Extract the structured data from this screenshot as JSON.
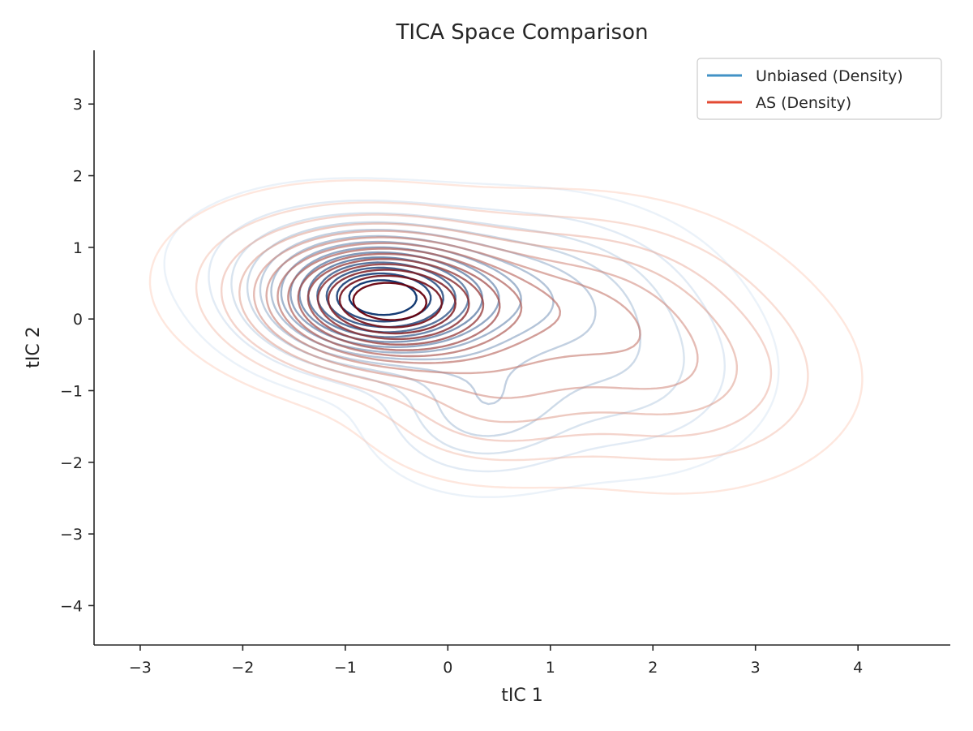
{
  "chart_data": {
    "type": "contour",
    "title": "TICA Space Comparison",
    "xlabel": "tIC 1",
    "ylabel": "tIC 2",
    "xlim": [
      -3.45,
      4.9
    ],
    "ylim": [
      -4.55,
      3.75
    ],
    "xticks": [
      -3,
      -2,
      -1,
      0,
      1,
      2,
      3,
      4
    ],
    "yticks": [
      -4,
      -3,
      -2,
      -1,
      0,
      1,
      2,
      3
    ],
    "xtick_labels": [
      "−3",
      "−2",
      "−1",
      "0",
      "1",
      "2",
      "3",
      "4"
    ],
    "ytick_labels": [
      "−4",
      "−3",
      "−2",
      "−1",
      "0",
      "1",
      "2",
      "3"
    ],
    "grid": false,
    "legend_position": "top-right",
    "series": [
      {
        "name": "Unbiased (Density)",
        "color": "#4292c6",
        "colormap": "Blues",
        "levels": 14,
        "components": [
          {
            "weight": 1.0,
            "mean": [
              -0.7,
              0.25
            ],
            "sigma": [
              0.7,
              0.55
            ]
          },
          {
            "weight": 0.35,
            "mean": [
              0.8,
              0.4
            ],
            "sigma": [
              0.9,
              0.7
            ]
          },
          {
            "weight": 0.3,
            "mean": [
              0.3,
              -1.3
            ],
            "sigma": [
              0.6,
              0.6
            ]
          },
          {
            "weight": 0.22,
            "mean": [
              1.8,
              -0.8
            ],
            "sigma": [
              0.8,
              0.8
            ]
          },
          {
            "weight": 0.18,
            "mean": [
              -1.2,
              0.9
            ],
            "sigma": [
              0.9,
              0.6
            ]
          }
        ]
      },
      {
        "name": "AS (Density)",
        "color": "#e34a33",
        "colormap": "Reds",
        "levels": 14,
        "components": [
          {
            "weight": 1.0,
            "mean": [
              -0.6,
              0.22
            ],
            "sigma": [
              0.75,
              0.6
            ]
          },
          {
            "weight": 0.4,
            "mean": [
              1.2,
              0.25
            ],
            "sigma": [
              1.0,
              0.75
            ]
          },
          {
            "weight": 0.3,
            "mean": [
              2.3,
              -0.9
            ],
            "sigma": [
              0.9,
              0.8
            ]
          },
          {
            "weight": 0.25,
            "mean": [
              0.4,
              -1.2
            ],
            "sigma": [
              0.7,
              0.6
            ]
          },
          {
            "weight": 0.2,
            "mean": [
              -1.3,
              0.6
            ],
            "sigma": [
              0.9,
              0.7
            ]
          }
        ]
      }
    ]
  }
}
